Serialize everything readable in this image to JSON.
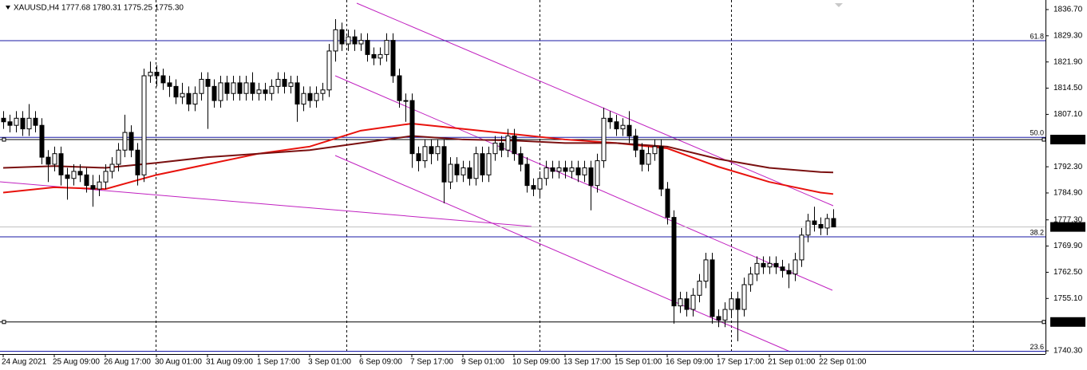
{
  "chart_data": {
    "type": "candlestick",
    "title": "XAUUSD,H4 1777.68 1780.31 1775.25 1775.30",
    "categories": [
      "24 Aug 2021",
      null,
      null,
      null,
      null,
      null,
      null,
      null,
      "25 Aug 09:00",
      null,
      null,
      null,
      null,
      null,
      null,
      null,
      "26 Aug 17:00",
      null,
      null,
      null,
      null,
      null,
      null,
      null,
      "30 Aug 01:00",
      null,
      null,
      null,
      null,
      null,
      null,
      null,
      "31 Aug 09:00",
      null,
      null,
      null,
      null,
      null,
      null,
      null,
      "1 Sep 17:00",
      null,
      null,
      null,
      null,
      null,
      null,
      null,
      "3 Sep 01:00",
      null,
      null,
      null,
      null,
      null,
      null,
      null,
      "6 Sep 09:00",
      null,
      null,
      null,
      null,
      null,
      null,
      null,
      "7 Sep 17:00",
      null,
      null,
      null,
      null,
      null,
      null,
      null,
      "9 Sep 01:00",
      null,
      null,
      null,
      null,
      null,
      null,
      null,
      "10 Sep 09:00",
      null,
      null,
      null,
      null,
      null,
      null,
      null,
      "13 Sep 17:00",
      null,
      null,
      null,
      null,
      null,
      null,
      null,
      "15 Sep 01:00",
      null,
      null,
      null,
      null,
      null,
      null,
      null,
      "16 Sep 09:00",
      null,
      null,
      null,
      null,
      null,
      null,
      null,
      "17 Sep 17:00",
      null,
      null,
      null,
      null,
      null,
      null,
      null,
      "21 Sep 01:00",
      null,
      null,
      null,
      null,
      null,
      null,
      null,
      "22 Sep 01:00",
      null,
      null
    ],
    "open": [
      1806,
      1805,
      1804,
      1806,
      1803,
      1806,
      1804,
      1795,
      1793,
      1796,
      1790,
      1789,
      1791,
      1790,
      1787,
      1786,
      1788,
      1791,
      1793,
      1797,
      1802,
      1797,
      1790,
      1818,
      1819,
      1818,
      1816,
      1815,
      1812,
      1813,
      1810,
      1813,
      1817,
      1815,
      1811,
      1816,
      1813,
      1816,
      1813,
      1816,
      1813,
      1814,
      1813,
      1815,
      1817,
      1815,
      1816,
      1810,
      1813,
      1811,
      1813,
      1814,
      1825,
      1831,
      1827,
      1829,
      1827,
      1828,
      1824,
      1823,
      1824,
      1828,
      1818,
      1811,
      1811,
      1796,
      1794,
      1798,
      1796,
      1798,
      1788,
      1793,
      1790,
      1792,
      1789,
      1796,
      1790,
      1796,
      1799,
      1797,
      1801,
      1796,
      1793,
      1787,
      1786,
      1789,
      1792,
      1791,
      1792,
      1791,
      1792,
      1790,
      1792,
      1787,
      1794,
      1806,
      1805,
      1803,
      1804,
      1801,
      1797,
      1793,
      1796,
      1798,
      1786,
      1778,
      1753,
      1755,
      1752,
      1756,
      1760,
      1766,
      1750,
      1749,
      1752,
      1755,
      1752,
      1759,
      1762,
      1765,
      1764,
      1765,
      1764,
      1763,
      1762,
      1766,
      1773,
      1777,
      1776,
      1775,
      1777.68
    ],
    "high": [
      1808,
      1807,
      1808,
      1808,
      1810,
      1808,
      1806,
      1797,
      1798,
      1798,
      1792,
      1793,
      1793,
      1792,
      1790,
      1790,
      1793,
      1795,
      1799,
      1807,
      1804,
      1799,
      1820,
      1822,
      1821,
      1820,
      1818,
      1817,
      1816,
      1815,
      1815,
      1819,
      1819,
      1817,
      1818,
      1818,
      1818,
      1818,
      1818,
      1819,
      1816,
      1816,
      1817,
      1819,
      1819,
      1818,
      1818,
      1815,
      1815,
      1815,
      1816,
      1827,
      1834,
      1833,
      1831,
      1831,
      1830,
      1830,
      1826,
      1826,
      1830,
      1830,
      1820,
      1813,
      1813,
      1798,
      1800,
      1800,
      1800,
      1800,
      1795,
      1795,
      1794,
      1794,
      1798,
      1798,
      1798,
      1801,
      1801,
      1803,
      1803,
      1798,
      1795,
      1789,
      1791,
      1794,
      1794,
      1794,
      1794,
      1794,
      1794,
      1794,
      1794,
      1796,
      1809,
      1808,
      1807,
      1806,
      1808,
      1803,
      1799,
      1798,
      1800,
      1800,
      1788,
      1780,
      1757,
      1757,
      1758,
      1762,
      1768,
      1768,
      1752,
      1754,
      1757,
      1757,
      1761,
      1764,
      1767,
      1767,
      1767,
      1767,
      1766,
      1765,
      1768,
      1775,
      1779,
      1781,
      1778,
      1779,
      1780.31
    ],
    "low": [
      1803,
      1802,
      1802,
      1801,
      1801,
      1802,
      1793,
      1788,
      1791,
      1787,
      1783,
      1787,
      1788,
      1785,
      1781,
      1784,
      1786,
      1789,
      1791,
      1795,
      1795,
      1787,
      1788,
      1816,
      1815,
      1814,
      1812,
      1810,
      1810,
      1808,
      1808,
      1811,
      1803,
      1809,
      1809,
      1811,
      1811,
      1811,
      1811,
      1811,
      1811,
      1811,
      1811,
      1813,
      1813,
      1813,
      1805,
      1808,
      1809,
      1809,
      1811,
      1812,
      1822,
      1825,
      1825,
      1825,
      1825,
      1822,
      1821,
      1821,
      1822,
      1816,
      1809,
      1805,
      1792,
      1791,
      1792,
      1793,
      1794,
      1782,
      1786,
      1788,
      1788,
      1787,
      1787,
      1788,
      1788,
      1794,
      1795,
      1795,
      1794,
      1791,
      1785,
      1784,
      1784,
      1787,
      1789,
      1789,
      1789,
      1789,
      1788,
      1788,
      1780,
      1785,
      1792,
      1803,
      1801,
      1801,
      1799,
      1795,
      1791,
      1791,
      1794,
      1784,
      1776,
      1748,
      1751,
      1750,
      1750,
      1754,
      1758,
      1748,
      1747,
      1747,
      1750,
      1743,
      1750,
      1757,
      1760,
      1762,
      1762,
      1762,
      1761,
      1758,
      1760,
      1764,
      1771,
      1774,
      1773,
      1773,
      1775.25
    ],
    "close": [
      1805,
      1804,
      1806,
      1803,
      1806,
      1804,
      1795,
      1793,
      1796,
      1790,
      1789,
      1791,
      1790,
      1787,
      1786,
      1788,
      1791,
      1793,
      1797,
      1802,
      1797,
      1790,
      1818,
      1819,
      1818,
      1816,
      1815,
      1812,
      1813,
      1810,
      1813,
      1817,
      1815,
      1811,
      1816,
      1813,
      1816,
      1813,
      1816,
      1813,
      1814,
      1813,
      1815,
      1817,
      1815,
      1816,
      1810,
      1813,
      1811,
      1813,
      1814,
      1825,
      1831,
      1827,
      1829,
      1827,
      1828,
      1824,
      1823,
      1824,
      1828,
      1818,
      1811,
      1811,
      1796,
      1794,
      1798,
      1796,
      1798,
      1788,
      1793,
      1790,
      1792,
      1789,
      1796,
      1790,
      1796,
      1799,
      1797,
      1801,
      1796,
      1793,
      1787,
      1786,
      1789,
      1792,
      1791,
      1792,
      1791,
      1792,
      1790,
      1792,
      1787,
      1794,
      1806,
      1805,
      1803,
      1804,
      1801,
      1797,
      1793,
      1796,
      1798,
      1786,
      1778,
      1753,
      1755,
      1752,
      1756,
      1760,
      1766,
      1750,
      1749,
      1752,
      1755,
      1752,
      1759,
      1762,
      1765,
      1764,
      1765,
      1764,
      1763,
      1762,
      1766,
      1773,
      1777,
      1776,
      1775,
      1777.68,
      1775.3
    ],
    "up_color": "#ffffff",
    "down_color": "#000000",
    "moving_averages": [
      {
        "color": "#e8120c",
        "x": [
          0,
          8,
          16,
          24,
          32,
          40,
          48,
          56,
          64,
          72,
          80,
          88,
          96,
          104,
          112,
          120,
          128,
          130
        ],
        "values": [
          1785,
          1786.5,
          1786,
          1790,
          1793,
          1796,
          1798,
          1802.5,
          1804.5,
          1803,
          1801.5,
          1800,
          1799,
          1797.5,
          1792.3,
          1788,
          1785,
          1784.6
        ]
      },
      {
        "color": "#7a1010",
        "x": [
          0,
          8,
          16,
          24,
          32,
          40,
          48,
          56,
          64,
          72,
          80,
          88,
          96,
          104,
          112,
          120,
          128,
          130
        ],
        "values": [
          1792,
          1792.5,
          1792,
          1793.4,
          1795,
          1796,
          1797,
          1799,
          1801,
          1800,
          1799.7,
          1799,
          1799,
          1798,
          1794.5,
          1792,
          1790.8,
          1790.7
        ]
      }
    ],
    "ylim": [
      1739.4,
      1839.4
    ],
    "yticks": [
      {
        "value": 1836.7,
        "label": "1836.70"
      },
      {
        "value": 1829.3,
        "label": "1829.30"
      },
      {
        "value": 1821.9,
        "label": "1821.90"
      },
      {
        "value": 1814.5,
        "label": "1814.50"
      },
      {
        "value": 1807.1,
        "label": "1807.10"
      },
      {
        "value": 1792.3,
        "label": "1792.30"
      },
      {
        "value": 1784.9,
        "label": "1784.90"
      },
      {
        "value": 1777.3,
        "label": "1777.30"
      },
      {
        "value": 1769.9,
        "label": "1769.90"
      },
      {
        "value": 1762.5,
        "label": "1762.50"
      },
      {
        "value": 1755.1,
        "label": "1755.10"
      },
      {
        "value": 1740.3,
        "label": "1740.30"
      }
    ],
    "price_lines": [
      {
        "value": 1799.98,
        "label": "1799.98",
        "color": "#000000"
      },
      {
        "value": 1748.46,
        "label": "1748.46",
        "color": "#000000"
      },
      {
        "value": 1775.3,
        "label": "1775.30",
        "color": "#c0c0c0"
      }
    ],
    "fib_levels": [
      {
        "label": "61.8",
        "price": 1827.9
      },
      {
        "label": "50.0",
        "price": 1800.6
      },
      {
        "label": "38.2",
        "price": 1772.5
      },
      {
        "label": "23.6",
        "price": 1740.2
      }
    ],
    "fib_color": "#1a1aa6"
  }
}
